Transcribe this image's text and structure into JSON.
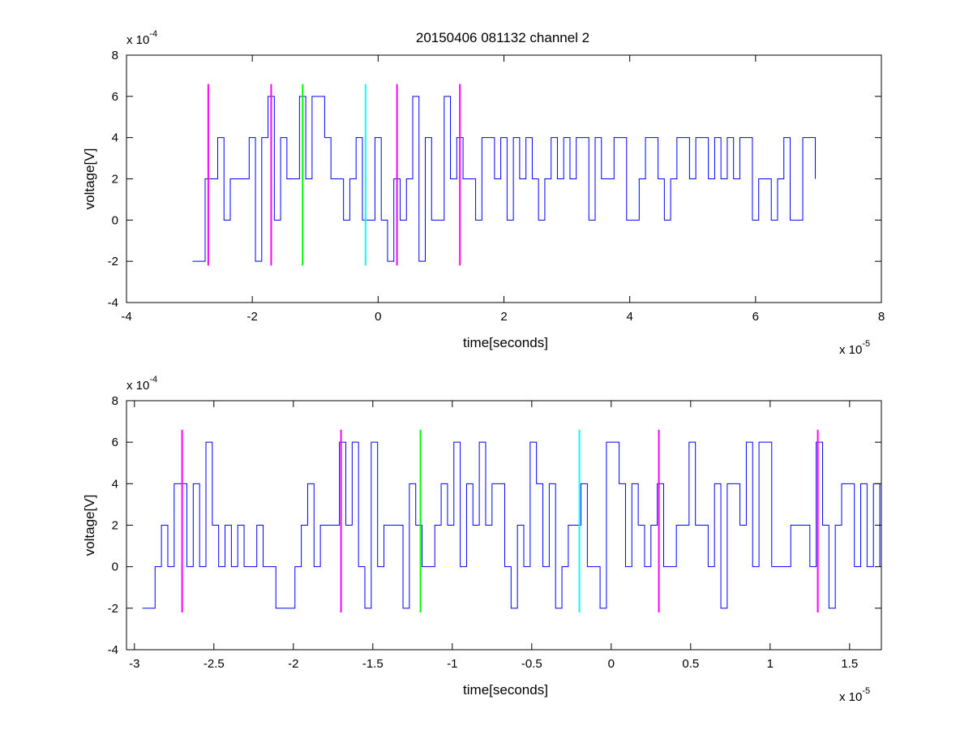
{
  "figure_title": "20150406 081132 channel 2",
  "chart_data": [
    {
      "type": "line",
      "title": "20150406 081132 channel 2",
      "xlabel": "time[seconds]",
      "ylabel": "voltage[V]",
      "x_multiplier": "x 10",
      "x_exponent": "-5",
      "y_multiplier": "x 10",
      "y_exponent": "-4",
      "xlim": [
        -4,
        8
      ],
      "ylim": [
        -4,
        8
      ],
      "xticks": [
        -4,
        -2,
        0,
        2,
        4,
        6,
        8
      ],
      "xtick_labels": [
        "-4",
        "-2",
        "0",
        "2",
        "4",
        "6",
        "8"
      ],
      "yticks": [
        -4,
        -2,
        0,
        2,
        4,
        6,
        8
      ],
      "ytick_labels": [
        "-4",
        "-2",
        "0",
        "2",
        "4",
        "6",
        "8"
      ],
      "grid": false,
      "signal": {
        "color": "#0000ff",
        "x_start": -2.95,
        "x_end": 7.0,
        "levels": [
          -2,
          0,
          2,
          4,
          6
        ],
        "description_values_y": [
          2,
          0,
          2,
          4,
          2,
          0,
          2,
          4,
          6,
          2,
          0,
          -2
        ]
      },
      "markers": [
        {
          "x": -2.7,
          "y_low": -2.2,
          "y_high": 6.6,
          "color": "#ff00ff"
        },
        {
          "x": -1.7,
          "y_low": -2.2,
          "y_high": 6.6,
          "color": "#ff00ff"
        },
        {
          "x": -1.2,
          "y_low": -2.2,
          "y_high": 6.6,
          "color": "#00ff00"
        },
        {
          "x": -0.2,
          "y_low": -2.2,
          "y_high": 6.6,
          "color": "#00ffff"
        },
        {
          "x": 0.3,
          "y_low": -2.2,
          "y_high": 6.6,
          "color": "#ff00ff"
        },
        {
          "x": 1.3,
          "y_low": -2.2,
          "y_high": 6.6,
          "color": "#ff00ff"
        }
      ]
    },
    {
      "type": "line",
      "title": "",
      "xlabel": "time[seconds]",
      "ylabel": "voltage[V]",
      "x_multiplier": "x 10",
      "x_exponent": "-5",
      "y_multiplier": "x 10",
      "y_exponent": "-4",
      "xlim": [
        -3.05,
        1.7
      ],
      "ylim": [
        -4,
        8
      ],
      "xticks": [
        -3,
        -2.5,
        -2,
        -1.5,
        -1,
        -0.5,
        0,
        0.5,
        1,
        1.5
      ],
      "xtick_labels": [
        "-3",
        "-2.5",
        "-2",
        "-1.5",
        "-1",
        "-0.5",
        "0",
        "0.5",
        "1",
        "1.5"
      ],
      "yticks": [
        -4,
        -2,
        0,
        2,
        4,
        6,
        8
      ],
      "ytick_labels": [
        "-4",
        "-2",
        "0",
        "2",
        "4",
        "6",
        "8"
      ],
      "grid": false,
      "signal": {
        "color": "#0000ff",
        "x_start": -2.95,
        "x_end": 1.7,
        "levels": [
          -2,
          0,
          2,
          4,
          6
        ]
      },
      "markers": [
        {
          "x": -2.7,
          "y_low": -2.2,
          "y_high": 6.6,
          "color": "#ff00ff"
        },
        {
          "x": -1.7,
          "y_low": -2.2,
          "y_high": 6.6,
          "color": "#ff00ff"
        },
        {
          "x": -1.2,
          "y_low": -2.2,
          "y_high": 6.6,
          "color": "#00ff00"
        },
        {
          "x": -0.2,
          "y_low": -2.2,
          "y_high": 6.6,
          "color": "#00ffff"
        },
        {
          "x": 0.3,
          "y_low": -2.2,
          "y_high": 6.6,
          "color": "#ff00ff"
        },
        {
          "x": 1.3,
          "y_low": -2.2,
          "y_high": 6.6,
          "color": "#ff00ff"
        }
      ]
    }
  ]
}
